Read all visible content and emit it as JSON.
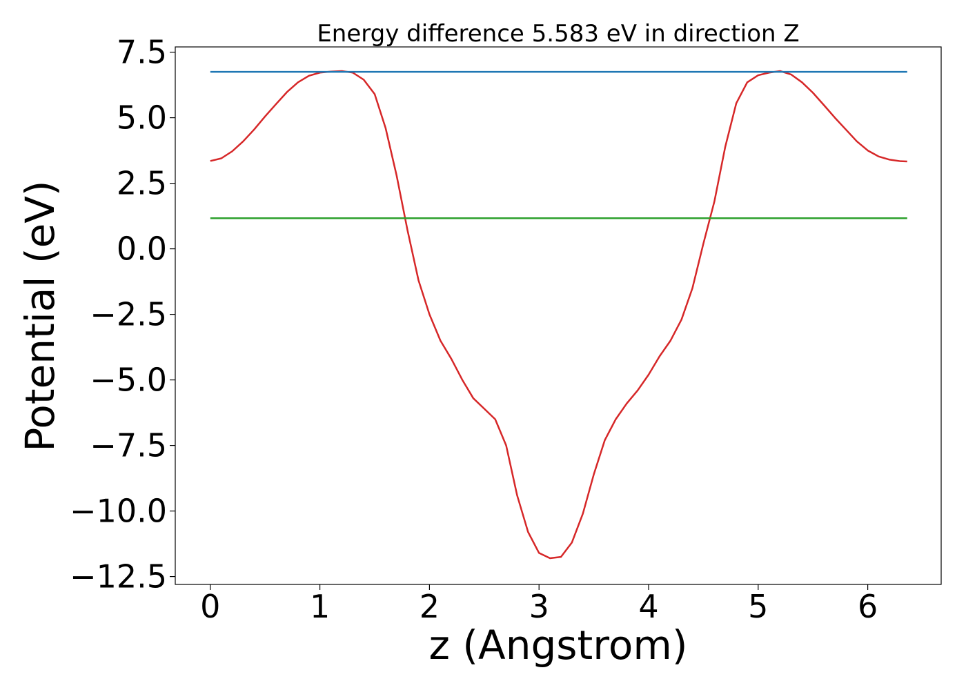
{
  "chart_data": {
    "type": "line",
    "title": "Energy difference 5.583 eV in direction Z",
    "xlabel": "z (Angstrom)",
    "ylabel": "Potential (eV)",
    "xlim": [
      -0.32,
      6.67
    ],
    "ylim": [
      -12.8,
      7.7
    ],
    "xticks": [
      0,
      1,
      2,
      3,
      4,
      5,
      6
    ],
    "xtick_labels": [
      "0",
      "1",
      "2",
      "3",
      "4",
      "5",
      "6"
    ],
    "yticks": [
      7.5,
      5.0,
      2.5,
      0.0,
      -2.5,
      -5.0,
      -7.5,
      -10.0,
      -12.5
    ],
    "ytick_labels": [
      "7.5",
      "5.0",
      "2.5",
      "0.0",
      "−2.5",
      "−5.0",
      "−7.5",
      "−10.0",
      "−12.5"
    ],
    "grid": false,
    "series": [
      {
        "color": "#d62728",
        "x": [
          0.0,
          0.1,
          0.2,
          0.3,
          0.4,
          0.5,
          0.6,
          0.7,
          0.8,
          0.9,
          1.0,
          1.1,
          1.2,
          1.25,
          1.3,
          1.4,
          1.5,
          1.6,
          1.7,
          1.8,
          1.9,
          2.0,
          2.1,
          2.2,
          2.3,
          2.4,
          2.5,
          2.6,
          2.7,
          2.8,
          2.9,
          3.0,
          3.1,
          3.2,
          3.3,
          3.4,
          3.5,
          3.6,
          3.7,
          3.8,
          3.9,
          4.0,
          4.1,
          4.2,
          4.3,
          4.4,
          4.5,
          4.6,
          4.7,
          4.8,
          4.9,
          5.0,
          5.1,
          5.15,
          5.2,
          5.3,
          5.4,
          5.5,
          5.6,
          5.7,
          5.8,
          5.9,
          6.0,
          6.1,
          6.2,
          6.3,
          6.36
        ],
        "y": [
          3.35,
          3.45,
          3.72,
          4.1,
          4.55,
          5.05,
          5.52,
          5.98,
          6.35,
          6.6,
          6.72,
          6.76,
          6.78,
          6.75,
          6.72,
          6.45,
          5.9,
          4.6,
          2.8,
          0.7,
          -1.2,
          -2.5,
          -3.5,
          -4.2,
          -5.0,
          -5.7,
          -6.1,
          -6.5,
          -7.5,
          -9.4,
          -10.8,
          -11.6,
          -11.8,
          -11.75,
          -11.2,
          -10.1,
          -8.6,
          -7.3,
          -6.5,
          -5.9,
          -5.4,
          -4.8,
          -4.1,
          -3.5,
          -2.7,
          -1.5,
          0.2,
          1.8,
          3.9,
          5.55,
          6.35,
          6.62,
          6.72,
          6.75,
          6.78,
          6.65,
          6.35,
          5.95,
          5.48,
          5.0,
          4.55,
          4.1,
          3.75,
          3.52,
          3.4,
          3.34,
          3.33
        ]
      },
      {
        "color": "#1f77b4",
        "x": [
          0.0,
          6.36
        ],
        "y": [
          6.75,
          6.75
        ]
      },
      {
        "color": "#2ca02c",
        "x": [
          0.0,
          6.36
        ],
        "y": [
          1.167,
          1.167
        ]
      }
    ]
  },
  "colors": {
    "potential_curve": "#d62728",
    "max_level_line": "#1f77b4",
    "mean_level_line": "#2ca02c",
    "axes": "#000000",
    "background": "#ffffff"
  }
}
